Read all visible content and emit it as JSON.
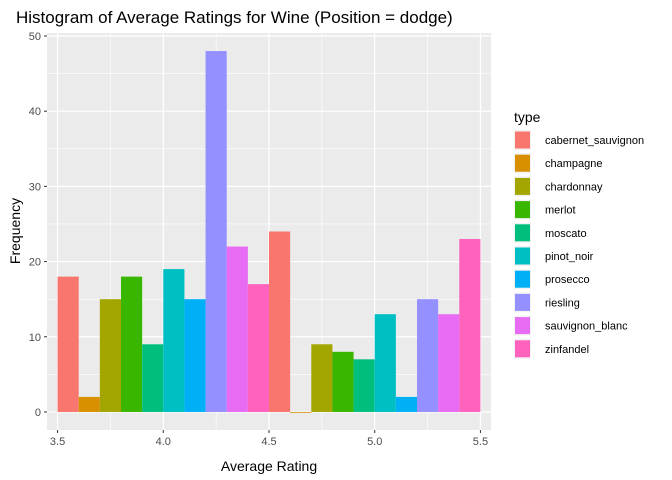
{
  "chart_data": {
    "type": "bar",
    "title": "Histogram of Average Ratings for Wine (Position = dodge)",
    "xlabel": "Average Rating",
    "ylabel": "Frequency",
    "xlim": [
      3.45,
      5.55
    ],
    "ylim": [
      -2.4,
      50.4
    ],
    "x_ticks": [
      3.5,
      4.0,
      4.5,
      5.0,
      5.5
    ],
    "x_tick_labels": [
      "3.5",
      "4.0",
      "4.5",
      "5.0",
      "5.5"
    ],
    "y_ticks": [
      0,
      10,
      20,
      30,
      40,
      50
    ],
    "y_tick_labels": [
      "0",
      "10",
      "20",
      "30",
      "40",
      "50"
    ],
    "bins": [
      {
        "x": 3.55,
        "width": 0.1
      },
      {
        "x": 3.65,
        "width": 0.1
      },
      {
        "x": 3.75,
        "width": 0.1
      },
      {
        "x": 3.85,
        "width": 0.1
      },
      {
        "x": 3.95,
        "width": 0.1
      },
      {
        "x": 4.05,
        "width": 0.1
      },
      {
        "x": 4.15,
        "width": 0.1
      },
      {
        "x": 4.25,
        "width": 0.1
      },
      {
        "x": 4.35,
        "width": 0.1
      },
      {
        "x": 4.45,
        "width": 0.1
      },
      {
        "x": 4.55,
        "width": 0.1
      },
      {
        "x": 4.65,
        "width": 0.1
      },
      {
        "x": 4.75,
        "width": 0.1
      },
      {
        "x": 4.85,
        "width": 0.1
      },
      {
        "x": 4.95,
        "width": 0.1
      },
      {
        "x": 5.05,
        "width": 0.1
      },
      {
        "x": 5.15,
        "width": 0.1
      },
      {
        "x": 5.25,
        "width": 0.1
      },
      {
        "x": 5.35,
        "width": 0.1
      },
      {
        "x": 5.45,
        "width": 0.1
      }
    ],
    "bars": [
      {
        "type": "cabernet_sauvignon",
        "x": 3.55,
        "count": 18
      },
      {
        "type": "champagne",
        "x": 3.65,
        "count": 2
      },
      {
        "type": "chardonnay",
        "x": 3.75,
        "count": 15
      },
      {
        "type": "merlot",
        "x": 3.85,
        "count": 18
      },
      {
        "type": "moscato",
        "x": 3.95,
        "count": 9
      },
      {
        "type": "pinot_noir",
        "x": 4.05,
        "count": 19
      },
      {
        "type": "prosecco",
        "x": 4.15,
        "count": 15
      },
      {
        "type": "riesling",
        "x": 4.25,
        "count": 48
      },
      {
        "type": "sauvignon_blanc",
        "x": 4.35,
        "count": 22
      },
      {
        "type": "zinfandel",
        "x": 4.45,
        "count": 17
      },
      {
        "type": "cabernet_sauvignon",
        "x": 4.55,
        "count": 24
      },
      {
        "type": "champagne",
        "x": 4.65,
        "count": 0
      },
      {
        "type": "chardonnay",
        "x": 4.75,
        "count": 9
      },
      {
        "type": "merlot",
        "x": 4.85,
        "count": 8
      },
      {
        "type": "moscato",
        "x": 4.95,
        "count": 7
      },
      {
        "type": "pinot_noir",
        "x": 5.05,
        "count": 13
      },
      {
        "type": "prosecco",
        "x": 5.15,
        "count": 2
      },
      {
        "type": "riesling",
        "x": 5.25,
        "count": 15
      },
      {
        "type": "sauvignon_blanc",
        "x": 5.35,
        "count": 13
      },
      {
        "type": "zinfandel",
        "x": 5.45,
        "count": 23
      }
    ],
    "legend": {
      "title": "type",
      "position": "right",
      "entries": [
        {
          "label": "cabernet_sauvignon",
          "color": "#F8766D"
        },
        {
          "label": "champagne",
          "color": "#D89000"
        },
        {
          "label": "chardonnay",
          "color": "#A3A500"
        },
        {
          "label": "merlot",
          "color": "#39B600"
        },
        {
          "label": "moscato",
          "color": "#00BF7D"
        },
        {
          "label": "pinot_noir",
          "color": "#00BFC4"
        },
        {
          "label": "prosecco",
          "color": "#00B0F6"
        },
        {
          "label": "riesling",
          "color": "#9590FF"
        },
        {
          "label": "sauvignon_blanc",
          "color": "#E76BF3"
        },
        {
          "label": "zinfandel",
          "color": "#FF62BC"
        }
      ]
    },
    "panel_color": "#EBEBEB",
    "grid": true,
    "grid_color": "#FFFFFF"
  }
}
